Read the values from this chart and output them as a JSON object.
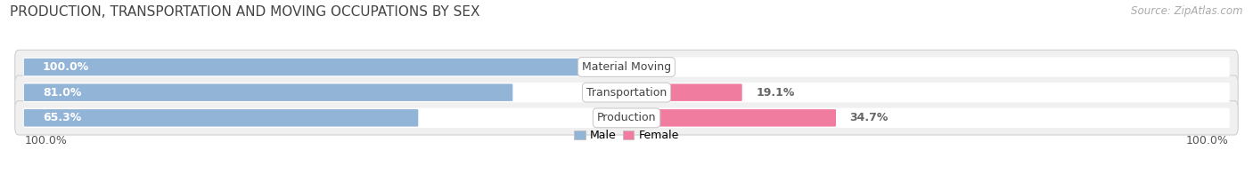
{
  "title": "PRODUCTION, TRANSPORTATION AND MOVING OCCUPATIONS BY SEX",
  "source": "Source: ZipAtlas.com",
  "categories": [
    "Material Moving",
    "Transportation",
    "Production"
  ],
  "male_values": [
    100.0,
    81.0,
    65.3
  ],
  "female_values": [
    0.0,
    19.1,
    34.7
  ],
  "male_color": "#92b4d7",
  "female_color": "#f07ca0",
  "male_color_light": "#c5d8ee",
  "female_color_light": "#f9c0d0",
  "bar_bg_color": "#e6e6e6",
  "title_fontsize": 11,
  "source_fontsize": 8.5,
  "bar_label_fontsize": 9,
  "category_fontsize": 9,
  "axis_label_fontsize": 9,
  "bar_height": 0.58,
  "left_axis_label": "100.0%",
  "right_axis_label": "100.0%",
  "fig_bg_color": "#ffffff",
  "bar_row_bg": "#f0f0f0"
}
